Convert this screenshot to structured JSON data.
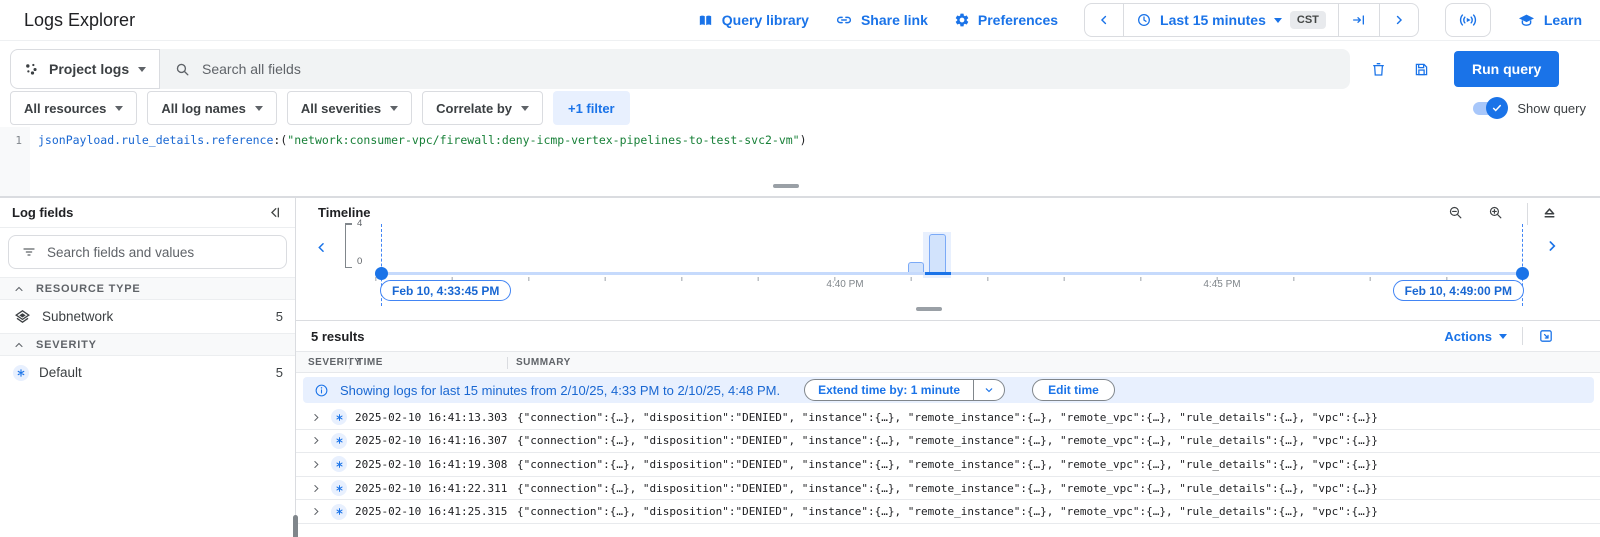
{
  "header": {
    "title": "Logs Explorer",
    "query_library": "Query library",
    "share_link": "Share link",
    "preferences": "Preferences",
    "time_range": "Last 15 minutes",
    "timezone": "CST",
    "learn": "Learn"
  },
  "toolbar": {
    "scope": "Project logs",
    "search_placeholder": "Search all fields",
    "run_query": "Run query"
  },
  "filters": {
    "resources": "All resources",
    "log_names": "All log names",
    "severities": "All severities",
    "correlate": "Correlate by",
    "extra": "+1 filter",
    "show_query": "Show query"
  },
  "editor": {
    "line_number": "1",
    "field": "jsonPayload.rule_details.reference",
    "punct_open": ":(",
    "value": "\"network:consumer-vpc/firewall:deny-icmp-vertex-pipelines-to-test-svc2-vm\"",
    "punct_close": ")"
  },
  "log_fields": {
    "title": "Log fields",
    "search_placeholder": "Search fields and values",
    "sections": [
      {
        "label": "RESOURCE TYPE",
        "items": [
          {
            "label": "Subnetwork",
            "count": "5"
          }
        ]
      },
      {
        "label": "SEVERITY",
        "items": [
          {
            "label": "Default",
            "count": "5"
          }
        ]
      }
    ]
  },
  "timeline": {
    "title": "Timeline",
    "y_max": "4",
    "y_min": "0",
    "start_chip": "Feb 10, 4:33:45 PM",
    "end_chip": "Feb 10, 4:49:00 PM",
    "ticks": [
      "4:40 PM",
      "4:45 PM"
    ]
  },
  "chart_data": {
    "type": "bar",
    "title": "Log entries histogram",
    "x": [
      "4:41:00 PM",
      "4:41:15 PM"
    ],
    "values": [
      1,
      4
    ],
    "ylim": [
      0,
      4
    ],
    "x_range": [
      "Feb 10, 4:33:45 PM",
      "Feb 10, 4:49:00 PM"
    ],
    "tick_labels": [
      "4:40 PM",
      "4:45 PM"
    ],
    "legend": "none",
    "grid": false
  },
  "results": {
    "count": "5 results",
    "actions": "Actions",
    "columns": [
      "SEVERITY",
      "TIME",
      "SUMMARY"
    ],
    "banner": {
      "text": "Showing logs for last 15 minutes from 2/10/25, 4:33 PM to 2/10/25, 4:48 PM.",
      "extend": "Extend time by: 1 minute",
      "edit": "Edit time"
    },
    "summary_text": "{\"connection\":{…}, \"disposition\":\"DENIED\", \"instance\":{…}, \"remote_instance\":{…}, \"remote_vpc\":{…}, \"rule_details\":{…}, \"vpc\":{…}}",
    "rows": [
      {
        "time": "2025-02-10 16:41:13.303"
      },
      {
        "time": "2025-02-10 16:41:16.307"
      },
      {
        "time": "2025-02-10 16:41:19.308"
      },
      {
        "time": "2025-02-10 16:41:22.311"
      },
      {
        "time": "2025-02-10 16:41:25.315"
      }
    ]
  },
  "colors": {
    "accent": "#1a73e8",
    "banner_bg": "#e8f0fe",
    "query_field_blue": "#1967d2",
    "query_string_green": "#188038",
    "bar_fill": "#d2e3fc",
    "bar_border": "#7baaf7"
  }
}
